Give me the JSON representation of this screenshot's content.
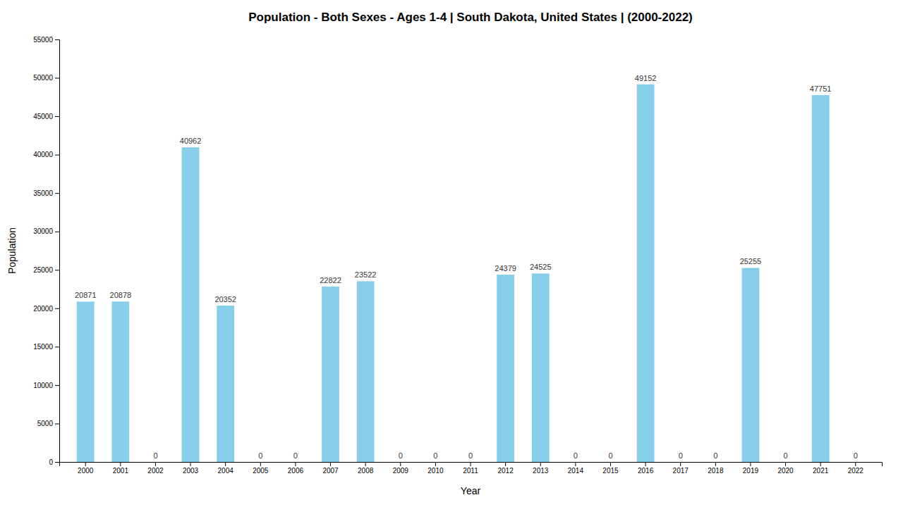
{
  "chart_data": {
    "type": "bar",
    "title": "Population - Both Sexes - Ages 1-4 | South Dakota, United States |  (2000-2022)",
    "x_label": "Year",
    "y_label": "Population",
    "categories": [
      "2000",
      "2001",
      "2002",
      "2003",
      "2004",
      "2005",
      "2006",
      "2007",
      "2008",
      "2009",
      "2010",
      "2011",
      "2012",
      "2013",
      "2014",
      "2015",
      "2016",
      "2017",
      "2018",
      "2019",
      "2020",
      "2021",
      "2022"
    ],
    "values": [
      20871,
      20878,
      0,
      40962,
      20352,
      0,
      0,
      22822,
      23522,
      0,
      0,
      0,
      24379,
      24525,
      0,
      0,
      49152,
      0,
      0,
      25255,
      0,
      47751,
      0
    ],
    "color": "#87CEEB",
    "ylim": [
      0,
      55000
    ],
    "yticks": [
      0,
      5000,
      10000,
      15000,
      20000,
      25000,
      30000,
      35000,
      40000,
      45000,
      50000,
      55000
    ],
    "grid": false,
    "data_labels": true
  }
}
